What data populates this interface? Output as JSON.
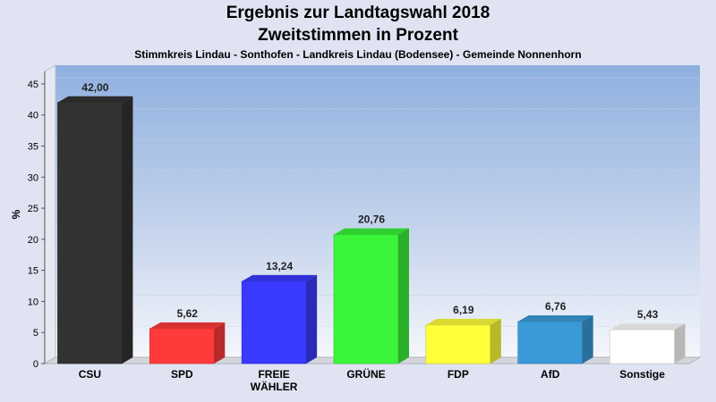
{
  "chart_data": {
    "type": "bar",
    "title": "Ergebnis zur Landtagswahl 2018",
    "subtitle": "Zweitstimmen in Prozent",
    "subsubtitle": "Stimmkreis Lindau - Sonthofen - Landkreis Lindau (Bodensee) - Gemeinde Nonnenhorn",
    "ylabel": "%",
    "ylim": [
      0,
      47
    ],
    "yticks": [
      0,
      5,
      10,
      15,
      20,
      25,
      30,
      35,
      40,
      45
    ],
    "grid": true,
    "categories": [
      "CSU",
      "SPD",
      "FREIE WÄHLER",
      "GRÜNE",
      "FDP",
      "AfD",
      "Sonstige"
    ],
    "category_lines": [
      [
        "CSU"
      ],
      [
        "SPD"
      ],
      [
        "FREIE",
        "WÄHLER"
      ],
      [
        "GRÜNE"
      ],
      [
        "FDP"
      ],
      [
        "AfD"
      ],
      [
        "Sonstige"
      ]
    ],
    "values": [
      42.0,
      5.62,
      13.24,
      20.76,
      6.19,
      6.76,
      5.43
    ],
    "value_labels": [
      "42,00",
      "5,62",
      "13,24",
      "20,76",
      "6,19",
      "6,76",
      "5,43"
    ],
    "colors": [
      "#333333",
      "#ff3a3a",
      "#3a3aff",
      "#3af53a",
      "#ffff3a",
      "#3a9ad8",
      "#ffffff"
    ]
  }
}
